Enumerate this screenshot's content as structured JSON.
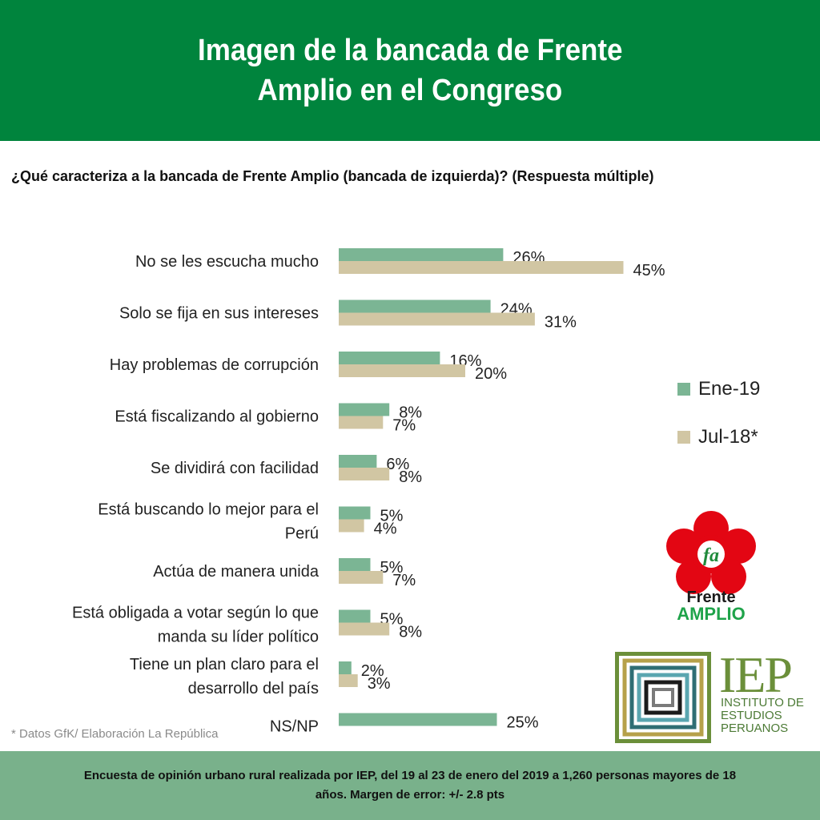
{
  "header": {
    "title_line1": "Imagen de la bancada de Frente",
    "title_line2": "Amplio en el Congreso"
  },
  "question": "¿Qué caracteriza a la bancada de Frente Amplio (bancada de izquierda)? (Respuesta múltiple)",
  "colors": {
    "ene19": "#7bb594",
    "jul18": "#d1c6a3",
    "header": "#00843d",
    "footer": "#79b18b"
  },
  "chart_data": {
    "type": "bar",
    "orientation": "horizontal",
    "categories": [
      [
        "No se les escucha mucho"
      ],
      [
        "Solo se fija en sus intereses"
      ],
      [
        "Hay problemas de corrupción"
      ],
      [
        "Está fiscalizando al gobierno"
      ],
      [
        "Se dividirá con facilidad"
      ],
      [
        "Está buscando lo mejor para el",
        "Perú"
      ],
      [
        "Actúa de manera unida"
      ],
      [
        "Está obligada a votar según lo que",
        "manda su líder político"
      ],
      [
        "Tiene un plan claro para el",
        "desarrollo del país"
      ],
      [
        "NS/NP"
      ]
    ],
    "series": [
      {
        "name": "Ene-19",
        "values": [
          26,
          24,
          16,
          8,
          6,
          5,
          5,
          5,
          2,
          25
        ],
        "value_labels": [
          "26%",
          "24%",
          "16%",
          "8%",
          "6%",
          "5%",
          "5%",
          "5%",
          "2%",
          "25%"
        ]
      },
      {
        "name": "Jul-18*",
        "values": [
          45,
          31,
          20,
          7,
          8,
          4,
          7,
          8,
          3,
          null
        ],
        "value_labels": [
          "45%",
          "31%",
          "20%",
          "7%",
          "8%",
          "4%",
          "7%",
          "8%",
          "3%",
          ""
        ]
      }
    ],
    "xlim": [
      0,
      45
    ],
    "legend_position": "right"
  },
  "legend": {
    "ene19": "Ene-19",
    "jul18": "Jul-18*"
  },
  "source": "* Datos GfK/ Elaboración La República",
  "logos": {
    "fa_mark": "fa",
    "fa_word1": "Frente",
    "fa_word2": "AMPLIO",
    "iep_big": "IEP",
    "iep_sub": "INSTITUTO DE ESTUDIOS PERUANOS"
  },
  "footer": {
    "line1": "Encuesta de opinión urbano rural realizada por IEP, del 19 al 23 de enero del 2019 a 1,260 personas mayores de 18",
    "line2": "años. Margen de error: +/- 2.8 pts"
  }
}
